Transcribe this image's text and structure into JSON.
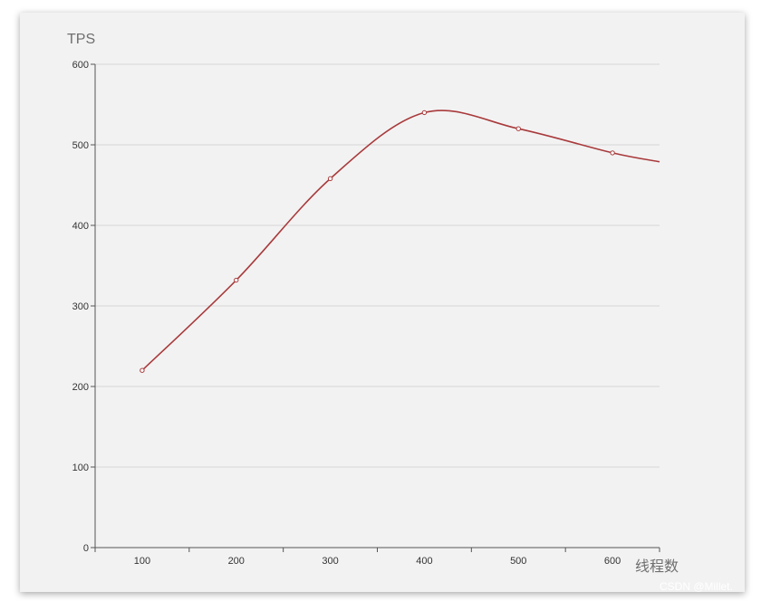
{
  "chart_data": {
    "type": "line",
    "x": [
      100,
      200,
      300,
      400,
      500,
      600
    ],
    "series": [
      {
        "values": [
          220,
          332,
          458,
          540,
          520,
          490
        ]
      }
    ],
    "ylabel": "TPS",
    "xlabel": "线程数",
    "ylim": [
      0,
      600
    ],
    "yticks": [
      0,
      100,
      200,
      300,
      400,
      500,
      600
    ],
    "xticks": [
      100,
      200,
      300,
      400,
      500,
      600
    ],
    "trailing_value": {
      "x": 650,
      "y": 479
    },
    "grid": true,
    "smooth": true
  },
  "colors": {
    "line": "#a83a3c",
    "grid": "#d6d6d6",
    "axis": "#555555",
    "panel": "#f3f2f2"
  },
  "watermark": "CSDN @Millet."
}
